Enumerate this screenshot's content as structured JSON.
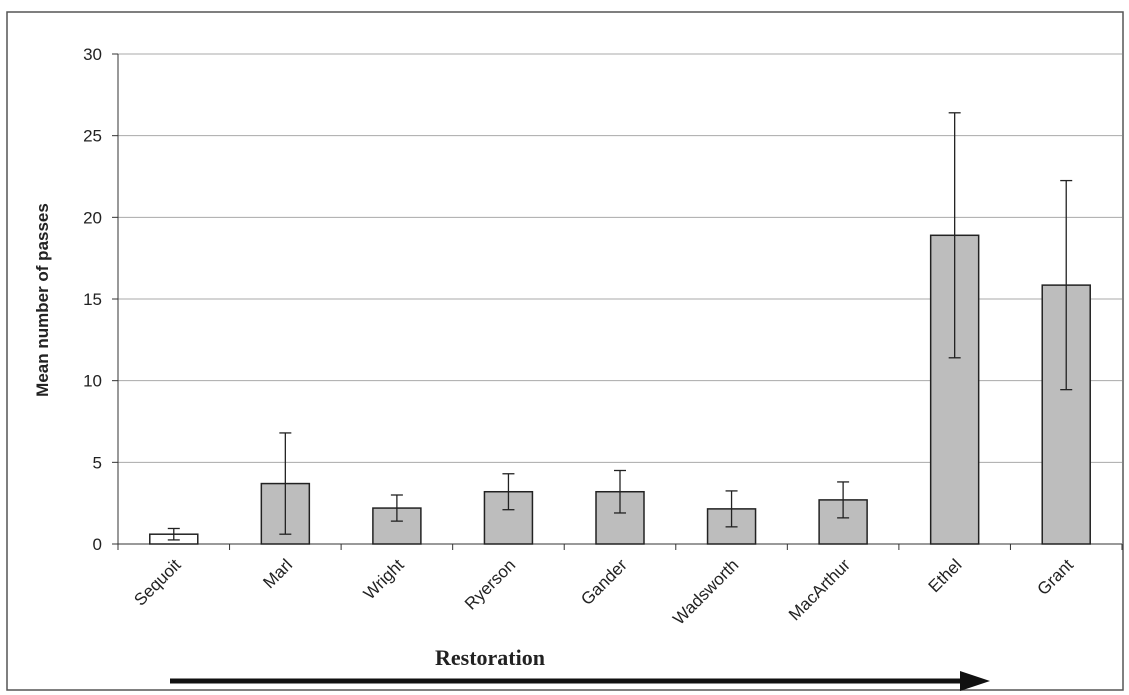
{
  "chart_data": {
    "type": "bar",
    "y_label": "Mean number of passes",
    "categories": [
      "Sequoit",
      "Marl",
      "Wright",
      "Ryerson",
      "Gander",
      "Wadsworth",
      "MacArthur",
      "Ethel",
      "Grant"
    ],
    "values": [
      0.6,
      3.7,
      2.2,
      3.2,
      3.2,
      2.15,
      2.7,
      18.9,
      15.85
    ],
    "error": [
      0.35,
      3.1,
      0.8,
      1.1,
      1.3,
      1.1,
      1.1,
      7.5,
      6.4
    ],
    "colors": [
      "#ffffff",
      "#bdbdbd",
      "#bdbdbd",
      "#bdbdbd",
      "#bdbdbd",
      "#bdbdbd",
      "#bdbdbd",
      "#bdbdbd",
      "#bdbdbd"
    ],
    "ylim": [
      0,
      30
    ],
    "yticks": [
      0,
      5,
      10,
      15,
      20,
      25,
      30
    ],
    "grid": true,
    "annotation": "Restoration"
  }
}
